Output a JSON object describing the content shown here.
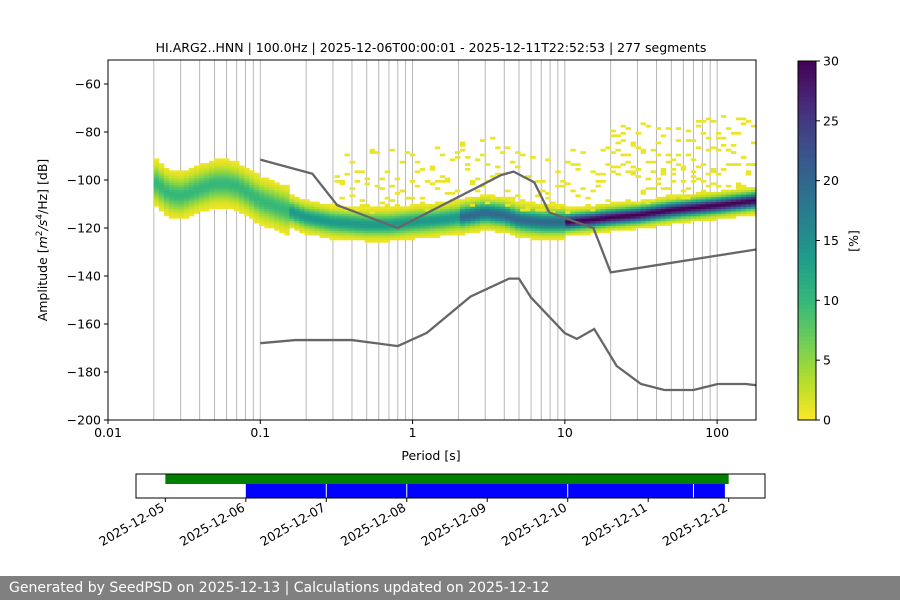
{
  "chart_data": {
    "type": "heatmap",
    "title": "HI.ARG2..HNN | 100.0Hz | 2025-12-06T00:00:01 - 2025-12-11T22:52:53 | 277 segments",
    "xlabel": "Period [s]",
    "ylabel": "Amplitude [m²/s⁴/Hz] [dB]",
    "xscale": "log",
    "xlim": [
      0.01,
      180
    ],
    "ylim": [
      -200,
      -50
    ],
    "grid": "vertical lines at log-spaced periods",
    "x_ticks": [
      0.01,
      0.1,
      1,
      10,
      100
    ],
    "x_tick_labels": [
      "0.01",
      "0.1",
      "1",
      "10",
      "100"
    ],
    "y_ticks": [
      -200,
      -180,
      -160,
      -140,
      -120,
      -100,
      -80,
      -60
    ],
    "y_tick_labels": [
      "−200",
      "−180",
      "−160",
      "−140",
      "−120",
      "−100",
      "−80",
      "−60"
    ],
    "colorbar": {
      "label": "[%]",
      "min": 0,
      "max": 30,
      "ticks": [
        0,
        5,
        10,
        15,
        20,
        25,
        30
      ],
      "colormap": "viridis_r"
    },
    "psd_mode": {
      "x": [
        0.02,
        0.025,
        0.03,
        0.04,
        0.05,
        0.06,
        0.07,
        0.08,
        0.1,
        0.15,
        0.2,
        0.3,
        0.5,
        0.7,
        1,
        1.5,
        2,
        3,
        4,
        5,
        7,
        10,
        15,
        20,
        30,
        50,
        70,
        100,
        180
      ],
      "y": [
        -101,
        -106,
        -107,
        -104,
        -102,
        -102,
        -103,
        -105,
        -109,
        -113,
        -116,
        -118,
        -119,
        -119,
        -118,
        -117,
        -116,
        -114,
        -115,
        -117,
        -118,
        -118,
        -117,
        -116,
        -115,
        -113,
        -112,
        -111,
        -109
      ]
    },
    "noise_model_high": {
      "x": [
        0.1,
        0.22,
        0.32,
        0.8,
        3.8,
        4.6,
        6.3,
        7.9,
        15.4,
        20,
        354.8
      ],
      "y": [
        -91.5,
        -97.4,
        -110.5,
        -120,
        -98,
        -96.5,
        -101,
        -113.5,
        -120,
        -138.5,
        -126
      ]
    },
    "noise_model_low": {
      "x": [
        0.1,
        0.17,
        0.4,
        0.8,
        1.24,
        2.4,
        4.3,
        5,
        6,
        10,
        12,
        15.6,
        21.9,
        31.6,
        45,
        70,
        101,
        154,
        180
      ],
      "y": [
        -168,
        -166.7,
        -166.7,
        -169.2,
        -163.7,
        -148.6,
        -141.1,
        -141.1,
        -149,
        -163.8,
        -166.2,
        -162.1,
        -177.5,
        -185,
        -187.5,
        -187.5,
        -185,
        -185,
        -185.5
      ]
    },
    "data_availability": {
      "x_tick_labels": [
        "2025-12-05",
        "2025-12-06",
        "2025-12-07",
        "2025-12-08",
        "2025-12-09",
        "2025-12-10",
        "2025-12-11",
        "2025-12-12"
      ],
      "xlim": [
        "2025-12-04T15:15",
        "2025-12-12T10:50"
      ],
      "green_bar": {
        "start": "2025-12-05T00:00",
        "end": "2025-12-12T00:00",
        "color": "#008000"
      },
      "blue_bar": {
        "start": "2025-12-06T00:00",
        "end": "2025-12-11T22:52",
        "color": "#0000ff"
      },
      "gaps": [
        "2025-12-07T00:00",
        "2025-12-08T00:00",
        "2025-12-10T00:00",
        "2025-12-11T13:30"
      ]
    }
  },
  "footer": {
    "text": "Generated by SeedPSD on 2025-12-13 | Calculations updated on 2025-12-12"
  }
}
